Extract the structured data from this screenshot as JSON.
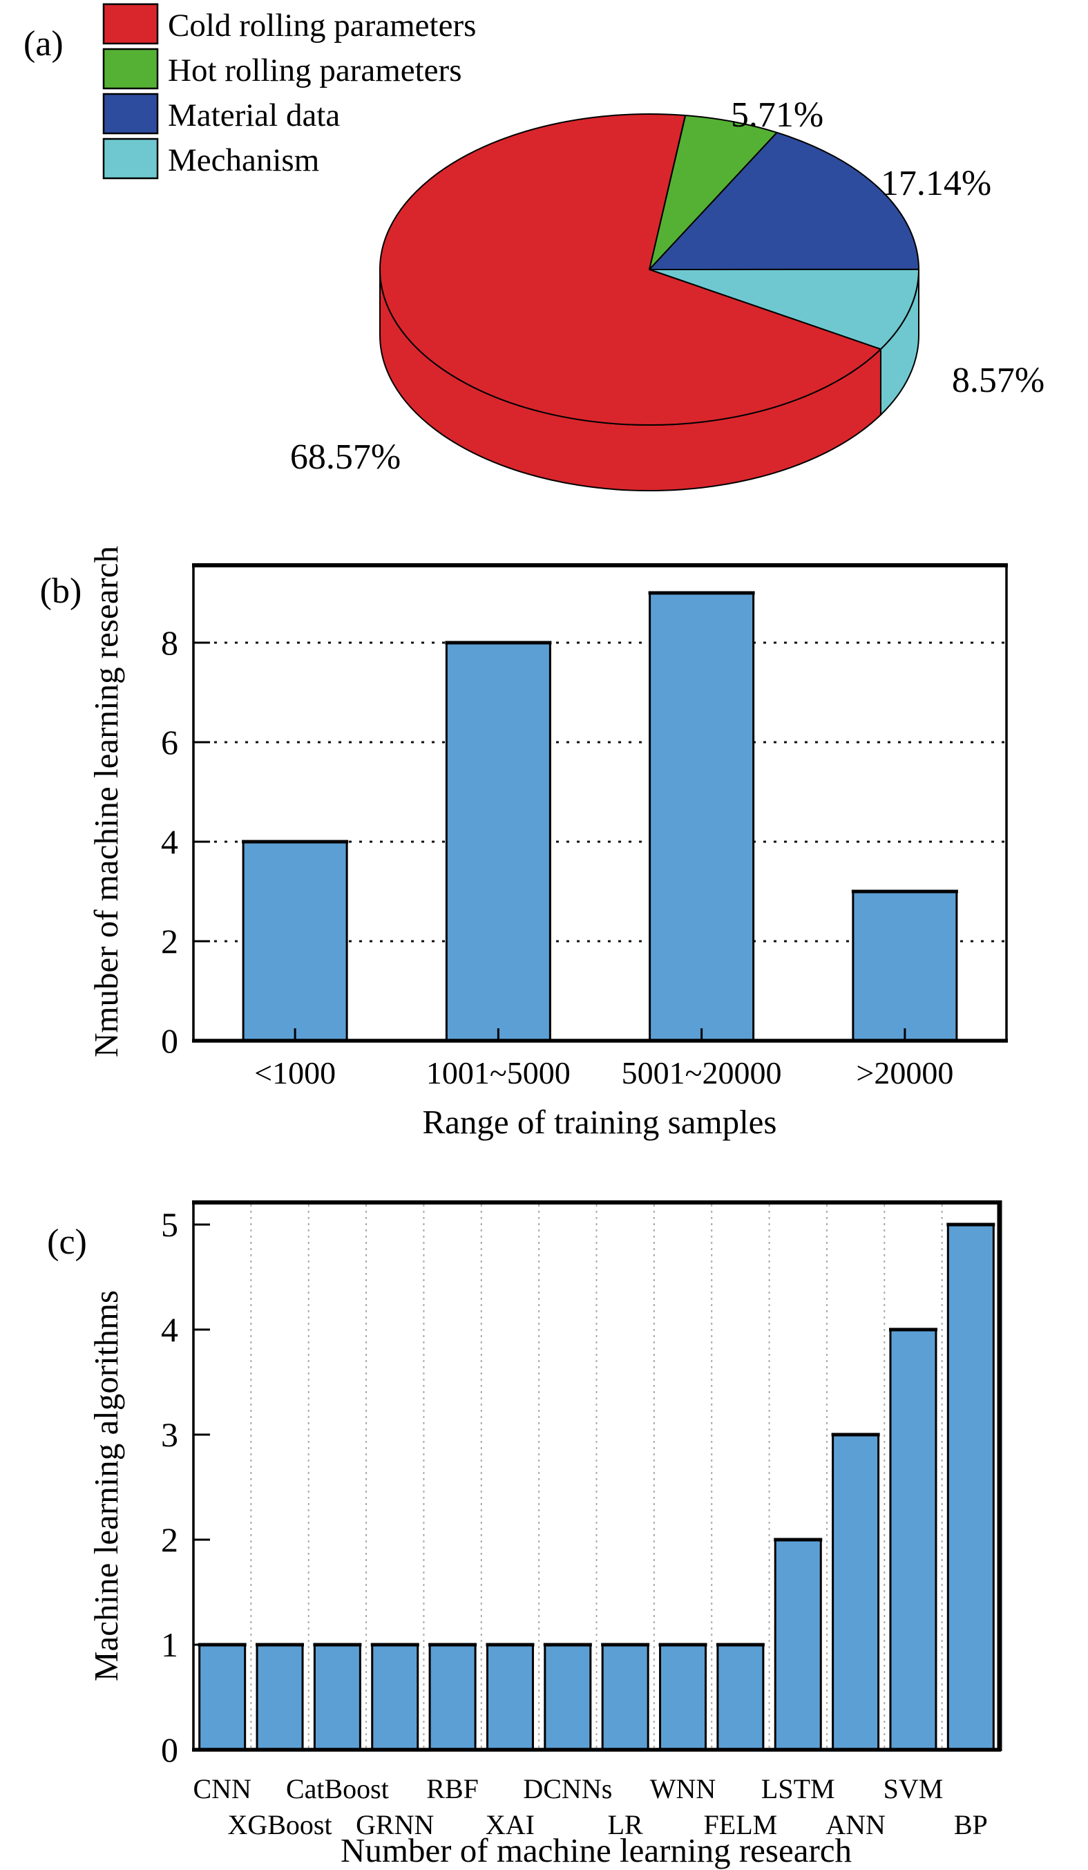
{
  "panels": {
    "a": {
      "tag": "(a)"
    },
    "b": {
      "tag": "(b)"
    },
    "c": {
      "tag": "(c)"
    }
  },
  "chart_data": [
    {
      "type": "pie",
      "panel": "a",
      "style": "3d-depth",
      "legend_position": "top-left",
      "start_angle_deg": 7.7,
      "legend": [
        {
          "label": "Cold rolling parameters",
          "color": "#d9262c"
        },
        {
          "label": "Hot rolling parameters",
          "color": "#55b134"
        },
        {
          "label": "Material data",
          "color": "#2e4c9e"
        },
        {
          "label": "Mechanism",
          "color": "#6fc8d0"
        }
      ],
      "slices_clockwise_from_top": [
        {
          "label": "Hot rolling parameters",
          "percent": 5.71,
          "display": "5.71%",
          "color": "#55b134"
        },
        {
          "label": "Material data",
          "percent": 17.14,
          "display": "17.14%",
          "color": "#2e4c9e"
        },
        {
          "label": "Mechanism",
          "percent": 8.57,
          "display": "8.57%",
          "color": "#6fc8d0"
        },
        {
          "label": "Cold rolling parameters",
          "percent": 68.57,
          "display": "68.57%",
          "color": "#d9262c"
        }
      ]
    },
    {
      "type": "bar",
      "panel": "b",
      "categories": [
        "<1000",
        "1001~5000",
        "5001~20000",
        ">20000"
      ],
      "values": [
        4,
        8,
        9,
        3
      ],
      "xlabel": "Range of training samples",
      "ylabel": "Nmuber of machine learning research",
      "yticks": [
        0,
        2,
        4,
        6,
        8
      ],
      "ylim": [
        0,
        9.56
      ],
      "bar_color": "#5c9fd4",
      "bar_edge_color": "#000000",
      "grid": "horizontal-dotted-black"
    },
    {
      "type": "bar",
      "panel": "c",
      "categories": [
        "CNN",
        "XGBoost",
        "CatBoost",
        "GRNN",
        "RBF",
        "XAI",
        "DCNNs",
        "LR",
        "WNN",
        "FELM",
        "LSTM",
        "ANN",
        "SVM",
        "BP"
      ],
      "values": [
        1,
        1,
        1,
        1,
        1,
        1,
        1,
        1,
        1,
        1,
        2,
        3,
        4,
        5
      ],
      "xlabel": "Number of machine learning research",
      "ylabel": "Machine learning algorithms",
      "yticks": [
        0,
        1,
        2,
        3,
        4,
        5
      ],
      "ylim": [
        0,
        5.21
      ],
      "bar_color": "#5c9fd4",
      "bar_edge_color": "#000000",
      "grid": "vertical-dashed-gray",
      "xlabel_stagger": true
    }
  ]
}
